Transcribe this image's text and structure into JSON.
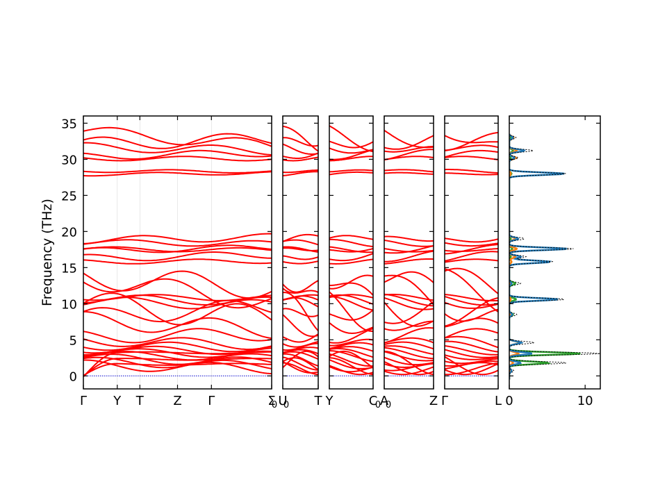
{
  "chart_data": {
    "type": "line",
    "ylabel": "Frequency (THz)",
    "ylim": [
      -1.8,
      36
    ],
    "yticks": [
      0,
      5,
      10,
      15,
      20,
      25,
      30,
      35
    ],
    "colors": {
      "bands": "#ff0000",
      "zero_line": "#0000cc",
      "dos_total": "#000000",
      "dos_1": "#1f77b4",
      "dos_2": "#ff7f0e",
      "dos_3": "#2ca02c"
    },
    "panels": [
      {
        "labels": [
          "Γ",
          "Y",
          "T",
          "Z",
          "Γ",
          "Σ"
        ],
        "positions": [
          0,
          0.18,
          0.3,
          0.5,
          0.68,
          1.0
        ]
      },
      {
        "labels": [
          "U",
          "T"
        ],
        "positions": [
          0,
          1.0
        ]
      },
      {
        "labels": [
          "Y",
          "C"
        ],
        "positions": [
          0,
          1.0
        ]
      },
      {
        "labels": [
          "A",
          "Z"
        ],
        "positions": [
          0,
          1.0
        ]
      },
      {
        "labels": [
          "Γ",
          "L"
        ],
        "positions": [
          0,
          1.0
        ]
      }
    ],
    "subscripts": [
      "0",
      "0",
      "0",
      "0"
    ],
    "dos": {
      "xlim": [
        0,
        12
      ],
      "xticks": [
        0,
        10
      ],
      "peaks": [
        {
          "f": 33.0,
          "total": 0.9,
          "p1": 0.5,
          "p2": 0.6,
          "p3": 0.2
        },
        {
          "f": 31.2,
          "total": 3.2,
          "p1": 2.0,
          "p2": 1.0,
          "p3": 0.5
        },
        {
          "f": 30.2,
          "total": 1.2,
          "p1": 0.7,
          "p2": 0.9,
          "p3": 0.2
        },
        {
          "f": 28.0,
          "total": 7.5,
          "p1": 7.3,
          "p2": 0.2,
          "p3": 0.3
        },
        {
          "f": 19.0,
          "total": 2.0,
          "p1": 1.2,
          "p2": 0.8,
          "p3": 0.2
        },
        {
          "f": 17.6,
          "total": 8.6,
          "p1": 7.7,
          "p2": 1.0,
          "p3": 0.4
        },
        {
          "f": 16.5,
          "total": 2.2,
          "p1": 1.5,
          "p2": 0.8,
          "p3": 0.2
        },
        {
          "f": 15.8,
          "total": 5.8,
          "p1": 5.4,
          "p2": 0.3,
          "p3": 0.3
        },
        {
          "f": 12.8,
          "total": 1.5,
          "p1": 0.3,
          "p2": 0.1,
          "p3": 0.8
        },
        {
          "f": 10.6,
          "total": 7.4,
          "p1": 6.5,
          "p2": 0.2,
          "p3": 0.9
        },
        {
          "f": 8.5,
          "total": 1.0,
          "p1": 0.4,
          "p2": 0.1,
          "p3": 0.5
        },
        {
          "f": 4.6,
          "total": 3.3,
          "p1": 1.6,
          "p2": 1.5,
          "p3": 1.5
        },
        {
          "f": 3.1,
          "total": 12.0,
          "p1": 3.0,
          "p2": 1.2,
          "p3": 9.4
        },
        {
          "f": 1.8,
          "total": 7.6,
          "p1": 1.5,
          "p2": 0.5,
          "p3": 5.2
        },
        {
          "f": 0.7,
          "total": 0.6,
          "p1": 0.3,
          "p2": 0.1,
          "p3": 0.2
        }
      ]
    },
    "band_seeds": [
      {
        "a": 33.9,
        "b": 31.8,
        "amp": 0.8
      },
      {
        "a": 32.1,
        "b": 32.8,
        "amp": 0.9
      },
      {
        "a": 31.7,
        "b": 31.2,
        "amp": 0.6
      },
      {
        "a": 30.4,
        "b": 30.9,
        "amp": 0.5
      },
      {
        "a": 30.1,
        "b": 30.1,
        "amp": 0.3
      },
      {
        "a": 28.4,
        "b": 28.3,
        "amp": 0.2
      },
      {
        "a": 27.9,
        "b": 28.1,
        "amp": 0.2
      },
      {
        "a": 18.8,
        "b": 19.2,
        "amp": 0.5
      },
      {
        "a": 18.5,
        "b": 18.3,
        "amp": 0.4
      },
      {
        "a": 17.6,
        "b": 17.4,
        "amp": 0.3
      },
      {
        "a": 17.3,
        "b": 17.8,
        "amp": 0.4
      },
      {
        "a": 16.3,
        "b": 16.8,
        "amp": 0.5
      },
      {
        "a": 15.8,
        "b": 15.9,
        "amp": 0.3
      },
      {
        "a": 13.7,
        "b": 12.2,
        "amp": 1.6
      },
      {
        "a": 13.5,
        "b": 10.2,
        "amp": 1.4
      },
      {
        "a": 10.9,
        "b": 10.8,
        "amp": 0.4
      },
      {
        "a": 10.7,
        "b": 10.3,
        "amp": 0.6
      },
      {
        "a": 10.3,
        "b": 9.8,
        "amp": 0.7
      },
      {
        "a": 10.0,
        "b": 7.8,
        "amp": 1.8
      },
      {
        "a": 8.1,
        "b": 9.6,
        "amp": 1.2
      },
      {
        "a": 7.7,
        "b": 6.4,
        "amp": 1.2
      },
      {
        "a": 5.4,
        "b": 5.8,
        "amp": 0.9
      },
      {
        "a": 4.9,
        "b": 4.3,
        "amp": 0.7
      },
      {
        "a": 4.2,
        "b": 3.9,
        "amp": 0.6
      },
      {
        "a": 3.7,
        "b": 3.4,
        "amp": 0.5
      },
      {
        "a": 3.4,
        "b": 2.9,
        "amp": 0.5
      },
      {
        "a": 3.0,
        "b": 2.5,
        "amp": 0.5
      },
      {
        "a": 2.5,
        "b": 1.9,
        "amp": 0.6
      },
      {
        "a": 2.0,
        "b": 1.4,
        "amp": 0.6
      },
      {
        "a": 1.5,
        "b": 1.0,
        "amp": 0.7
      },
      {
        "a": 0.0,
        "b": 3.2,
        "amp": 0.3
      },
      {
        "a": 0.0,
        "b": 2.3,
        "amp": 0.3
      },
      {
        "a": 0.0,
        "b": 1.6,
        "amp": 0.3
      }
    ]
  }
}
